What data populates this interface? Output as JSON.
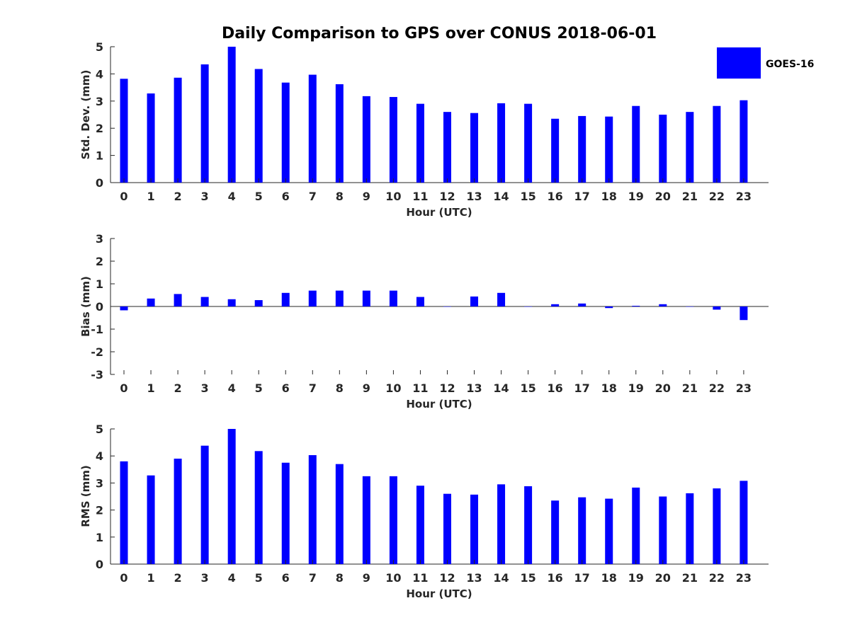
{
  "colors": {
    "bar": "#0000ff",
    "axis": "#262626",
    "background": "#ffffff"
  },
  "chart_data": {
    "type": "bar",
    "title": "Daily Comparison to GPS over CONUS 2018-06-01",
    "legend": {
      "label": "GOES-16",
      "placement": "top-right"
    },
    "categories": [
      "0",
      "1",
      "2",
      "3",
      "4",
      "5",
      "6",
      "7",
      "8",
      "9",
      "10",
      "11",
      "12",
      "13",
      "14",
      "15",
      "16",
      "17",
      "18",
      "19",
      "20",
      "21",
      "22",
      "23"
    ],
    "panels": [
      {
        "id": "std",
        "ylabel": "Std. Dev. (mm)",
        "xlabel": "Hour (UTC)",
        "ylim": [
          0,
          5
        ],
        "yticks": [
          0,
          1,
          2,
          3,
          4,
          5
        ],
        "series": [
          {
            "name": "GOES-16",
            "values": [
              3.82,
              3.28,
              3.86,
              4.35,
              5.0,
              4.18,
              3.68,
              3.97,
              3.62,
              3.18,
              3.15,
              2.9,
              2.6,
              2.56,
              2.92,
              2.9,
              2.35,
              2.45,
              2.43,
              2.82,
              2.5,
              2.6,
              2.82,
              3.03
            ]
          }
        ]
      },
      {
        "id": "bias",
        "ylabel": "Bias (mm)",
        "xlabel": "Hour (UTC)",
        "ylim": [
          -3,
          3
        ],
        "yticks": [
          -3,
          -2,
          -1,
          0,
          1,
          2,
          3
        ],
        "series": [
          {
            "name": "GOES-16",
            "values": [
              -0.17,
              0.35,
              0.55,
              0.42,
              0.32,
              0.28,
              0.6,
              0.7,
              0.7,
              0.7,
              0.7,
              0.42,
              0.0,
              0.44,
              0.6,
              0.0,
              0.1,
              0.13,
              -0.07,
              0.03,
              0.1,
              0.0,
              -0.14,
              -0.6
            ]
          }
        ]
      },
      {
        "id": "rms",
        "ylabel": "RMS (mm)",
        "xlabel": "Hour (UTC)",
        "ylim": [
          0,
          5
        ],
        "yticks": [
          0,
          1,
          2,
          3,
          4,
          5
        ],
        "series": [
          {
            "name": "GOES-16",
            "values": [
              3.8,
              3.28,
              3.9,
              4.38,
              5.0,
              4.18,
              3.75,
              4.03,
              3.7,
              3.25,
              3.25,
              2.9,
              2.6,
              2.57,
              2.95,
              2.88,
              2.35,
              2.47,
              2.42,
              2.83,
              2.5,
              2.62,
              2.8,
              3.08
            ]
          }
        ]
      }
    ]
  }
}
